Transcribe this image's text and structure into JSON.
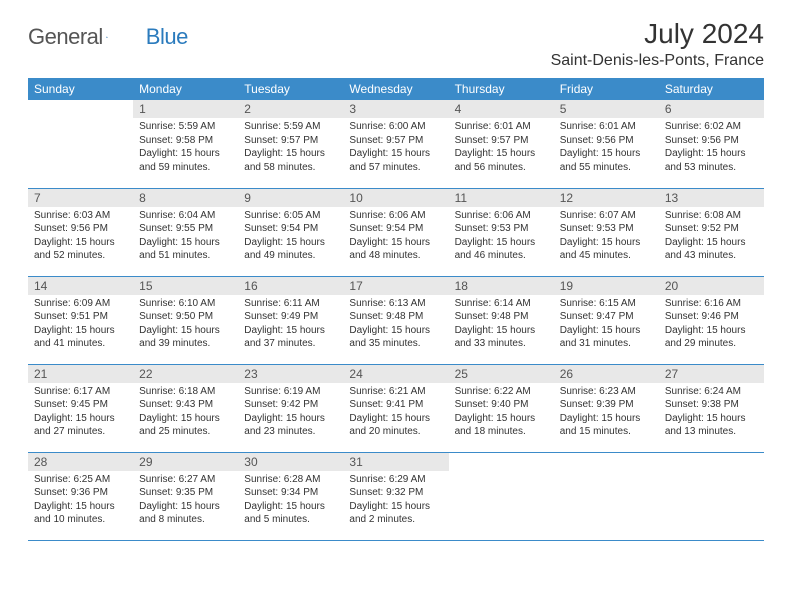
{
  "logo": {
    "text1": "General",
    "text2": "Blue"
  },
  "title": "July 2024",
  "location": "Saint-Denis-les-Ponts, France",
  "colors": {
    "header_bg": "#3b8bc9",
    "header_text": "#ffffff",
    "daynum_bg": "#e8e8e8",
    "cell_border": "#3b8bc9",
    "body_text": "#333333",
    "logo_gray": "#555555",
    "logo_blue": "#2b7bbd"
  },
  "weekdays": [
    "Sunday",
    "Monday",
    "Tuesday",
    "Wednesday",
    "Thursday",
    "Friday",
    "Saturday"
  ],
  "weeks": [
    [
      null,
      {
        "n": "1",
        "sr": "5:59 AM",
        "ss": "9:58 PM",
        "dl": "15 hours and 59 minutes."
      },
      {
        "n": "2",
        "sr": "5:59 AM",
        "ss": "9:57 PM",
        "dl": "15 hours and 58 minutes."
      },
      {
        "n": "3",
        "sr": "6:00 AM",
        "ss": "9:57 PM",
        "dl": "15 hours and 57 minutes."
      },
      {
        "n": "4",
        "sr": "6:01 AM",
        "ss": "9:57 PM",
        "dl": "15 hours and 56 minutes."
      },
      {
        "n": "5",
        "sr": "6:01 AM",
        "ss": "9:56 PM",
        "dl": "15 hours and 55 minutes."
      },
      {
        "n": "6",
        "sr": "6:02 AM",
        "ss": "9:56 PM",
        "dl": "15 hours and 53 minutes."
      }
    ],
    [
      {
        "n": "7",
        "sr": "6:03 AM",
        "ss": "9:56 PM",
        "dl": "15 hours and 52 minutes."
      },
      {
        "n": "8",
        "sr": "6:04 AM",
        "ss": "9:55 PM",
        "dl": "15 hours and 51 minutes."
      },
      {
        "n": "9",
        "sr": "6:05 AM",
        "ss": "9:54 PM",
        "dl": "15 hours and 49 minutes."
      },
      {
        "n": "10",
        "sr": "6:06 AM",
        "ss": "9:54 PM",
        "dl": "15 hours and 48 minutes."
      },
      {
        "n": "11",
        "sr": "6:06 AM",
        "ss": "9:53 PM",
        "dl": "15 hours and 46 minutes."
      },
      {
        "n": "12",
        "sr": "6:07 AM",
        "ss": "9:53 PM",
        "dl": "15 hours and 45 minutes."
      },
      {
        "n": "13",
        "sr": "6:08 AM",
        "ss": "9:52 PM",
        "dl": "15 hours and 43 minutes."
      }
    ],
    [
      {
        "n": "14",
        "sr": "6:09 AM",
        "ss": "9:51 PM",
        "dl": "15 hours and 41 minutes."
      },
      {
        "n": "15",
        "sr": "6:10 AM",
        "ss": "9:50 PM",
        "dl": "15 hours and 39 minutes."
      },
      {
        "n": "16",
        "sr": "6:11 AM",
        "ss": "9:49 PM",
        "dl": "15 hours and 37 minutes."
      },
      {
        "n": "17",
        "sr": "6:13 AM",
        "ss": "9:48 PM",
        "dl": "15 hours and 35 minutes."
      },
      {
        "n": "18",
        "sr": "6:14 AM",
        "ss": "9:48 PM",
        "dl": "15 hours and 33 minutes."
      },
      {
        "n": "19",
        "sr": "6:15 AM",
        "ss": "9:47 PM",
        "dl": "15 hours and 31 minutes."
      },
      {
        "n": "20",
        "sr": "6:16 AM",
        "ss": "9:46 PM",
        "dl": "15 hours and 29 minutes."
      }
    ],
    [
      {
        "n": "21",
        "sr": "6:17 AM",
        "ss": "9:45 PM",
        "dl": "15 hours and 27 minutes."
      },
      {
        "n": "22",
        "sr": "6:18 AM",
        "ss": "9:43 PM",
        "dl": "15 hours and 25 minutes."
      },
      {
        "n": "23",
        "sr": "6:19 AM",
        "ss": "9:42 PM",
        "dl": "15 hours and 23 minutes."
      },
      {
        "n": "24",
        "sr": "6:21 AM",
        "ss": "9:41 PM",
        "dl": "15 hours and 20 minutes."
      },
      {
        "n": "25",
        "sr": "6:22 AM",
        "ss": "9:40 PM",
        "dl": "15 hours and 18 minutes."
      },
      {
        "n": "26",
        "sr": "6:23 AM",
        "ss": "9:39 PM",
        "dl": "15 hours and 15 minutes."
      },
      {
        "n": "27",
        "sr": "6:24 AM",
        "ss": "9:38 PM",
        "dl": "15 hours and 13 minutes."
      }
    ],
    [
      {
        "n": "28",
        "sr": "6:25 AM",
        "ss": "9:36 PM",
        "dl": "15 hours and 10 minutes."
      },
      {
        "n": "29",
        "sr": "6:27 AM",
        "ss": "9:35 PM",
        "dl": "15 hours and 8 minutes."
      },
      {
        "n": "30",
        "sr": "6:28 AM",
        "ss": "9:34 PM",
        "dl": "15 hours and 5 minutes."
      },
      {
        "n": "31",
        "sr": "6:29 AM",
        "ss": "9:32 PM",
        "dl": "15 hours and 2 minutes."
      },
      null,
      null,
      null
    ]
  ],
  "labels": {
    "sunrise": "Sunrise:",
    "sunset": "Sunset:",
    "daylight": "Daylight:"
  }
}
